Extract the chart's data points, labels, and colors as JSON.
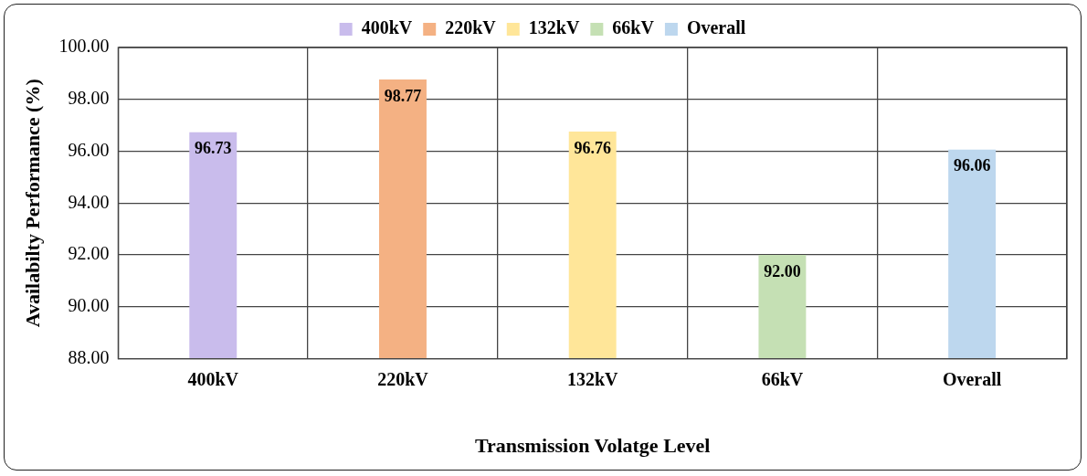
{
  "chart_data": {
    "type": "bar",
    "xlabel": "Transmission Volatge Level",
    "ylabel": "Availabilty Performance (%)",
    "categories": [
      "400kV",
      "220kV",
      "132kV",
      "66kV",
      "Overall"
    ],
    "series": [
      {
        "name": "400kV",
        "color": "#c9bcec",
        "values": [
          96.73,
          null,
          null,
          null,
          null
        ],
        "value_labels": [
          "96.73",
          null,
          null,
          null,
          null
        ]
      },
      {
        "name": "220kV",
        "color": "#f4b183",
        "values": [
          null,
          98.77,
          null,
          null,
          null
        ],
        "value_labels": [
          null,
          "98.77",
          null,
          null,
          null
        ]
      },
      {
        "name": "132kV",
        "color": "#ffe699",
        "values": [
          null,
          null,
          96.76,
          null,
          null
        ],
        "value_labels": [
          null,
          null,
          "96.76",
          null,
          null
        ]
      },
      {
        "name": "66kV",
        "color": "#c5e0b4",
        "values": [
          null,
          null,
          null,
          92.0,
          null
        ],
        "value_labels": [
          null,
          null,
          null,
          "92.00",
          null
        ]
      },
      {
        "name": "Overall",
        "color": "#bdd7ee",
        "values": [
          null,
          null,
          null,
          null,
          96.06
        ],
        "value_labels": [
          null,
          null,
          null,
          null,
          "96.06"
        ]
      }
    ],
    "ylim": [
      88,
      100
    ],
    "yticks": [
      {
        "value": 88,
        "label": "88.00"
      },
      {
        "value": 90,
        "label": "90.00"
      },
      {
        "value": 92,
        "label": "92.00"
      },
      {
        "value": 94,
        "label": "94.00"
      },
      {
        "value": 96,
        "label": "96.00"
      },
      {
        "value": 98,
        "label": "98.00"
      },
      {
        "value": 100,
        "label": "100.00"
      }
    ],
    "grid": true,
    "legend": "top"
  }
}
